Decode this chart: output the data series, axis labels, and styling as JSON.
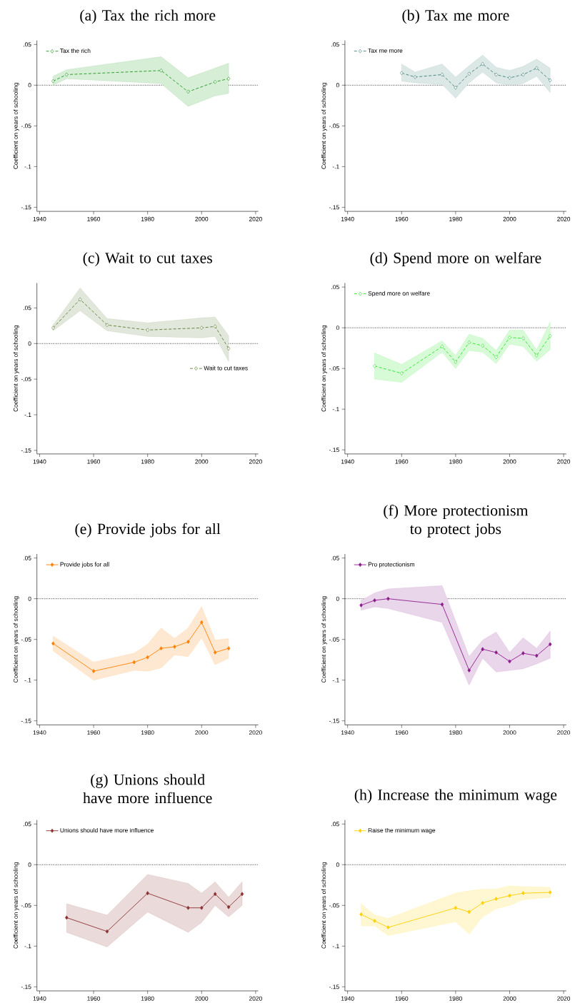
{
  "chart_data": [
    {
      "type": "line",
      "title": "(a) Tax the rich more",
      "ylabel": "Coefficient on years of schooling",
      "x": [
        1945,
        1950,
        1985,
        1995,
        2005,
        2010
      ],
      "xlim": [
        1939,
        2021
      ],
      "ylim": [
        -0.155,
        0.055
      ],
      "xticks": [
        1940,
        1960,
        1980,
        2000,
        2020
      ],
      "yticks": [
        {
          "value": -0.15,
          "label": "-.15"
        },
        {
          "value": -0.1,
          "label": "-.1"
        },
        {
          "value": -0.05,
          "label": "-.05"
        },
        {
          "value": 0,
          "label": "0"
        },
        {
          "value": 0.05,
          "label": ".05"
        }
      ],
      "marker": "diamond",
      "line_style": "dashed",
      "legend": "top left",
      "ref_lines": [
        {
          "axis": "y",
          "value": 0,
          "line_style": "dotted"
        }
      ],
      "series": [
        {
          "name": "Tax the rich",
          "color": "#1a991a",
          "values": [
            0.005,
            0.013,
            0.018,
            -0.008,
            0.004,
            0.008
          ],
          "lower": [
            0.0,
            0.008,
            0.002,
            -0.026,
            -0.013,
            -0.01
          ],
          "upper": [
            0.011,
            0.019,
            0.035,
            0.009,
            0.021,
            0.027
          ]
        }
      ]
    },
    {
      "type": "line",
      "title": "(b) Tax me more",
      "ylabel": "Coefficient on years of schooling",
      "x": [
        1960,
        1965,
        1975,
        1980,
        1985,
        1990,
        1995,
        2000,
        2005,
        2010,
        2015
      ],
      "xlim": [
        1939,
        2021
      ],
      "ylim": [
        -0.155,
        0.055
      ],
      "xticks": [
        1940,
        1960,
        1980,
        2000,
        2020
      ],
      "yticks": [
        {
          "value": -0.15,
          "label": "-.15"
        },
        {
          "value": -0.1,
          "label": "-.1"
        },
        {
          "value": -0.05,
          "label": "-.05"
        },
        {
          "value": 0,
          "label": "0"
        },
        {
          "value": 0.05,
          "label": ".05"
        }
      ],
      "marker": "diamond",
      "line_style": "dashed",
      "legend": "top left",
      "ref_lines": [
        {
          "axis": "y",
          "value": 0,
          "line_style": "dotted"
        }
      ],
      "series": [
        {
          "name": "Tax me more",
          "color": "#3d7f76",
          "values": [
            0.015,
            0.01,
            0.013,
            -0.003,
            0.014,
            0.026,
            0.013,
            0.009,
            0.013,
            0.021,
            0.006
          ],
          "lower": [
            0.005,
            0.003,
            0.001,
            -0.016,
            0.003,
            0.016,
            0.003,
            0.0,
            0.002,
            0.011,
            -0.009
          ],
          "upper": [
            0.026,
            0.016,
            0.026,
            0.01,
            0.024,
            0.037,
            0.022,
            0.018,
            0.023,
            0.032,
            0.021
          ]
        }
      ]
    },
    {
      "type": "line",
      "title": "(c) Wait to cut taxes",
      "ylabel": "Coefficient on years of schooling",
      "x": [
        1945,
        1955,
        1965,
        1980,
        2000,
        2005,
        2010
      ],
      "xlim": [
        1939,
        2021
      ],
      "ylim": [
        -0.155,
        0.085
      ],
      "xticks": [
        1940,
        1960,
        1980,
        2000,
        2020
      ],
      "yticks": [
        {
          "value": -0.15,
          "label": "-.15"
        },
        {
          "value": -0.1,
          "label": "-.1"
        },
        {
          "value": -0.05,
          "label": "-.05"
        },
        {
          "value": 0,
          "label": "0"
        },
        {
          "value": 0.05,
          "label": ".05"
        }
      ],
      "marker": "diamond",
      "line_style": "dashed",
      "legend": "right",
      "ref_lines": [
        {
          "axis": "y",
          "value": 0,
          "line_style": "dotted"
        }
      ],
      "series": [
        {
          "name": "Wait to cut taxes",
          "color": "#5a7a32",
          "values": [
            0.022,
            0.062,
            0.026,
            0.019,
            0.022,
            0.024,
            -0.007
          ],
          "lower": [
            0.018,
            0.046,
            0.018,
            0.01,
            0.008,
            0.01,
            -0.025
          ],
          "upper": [
            0.026,
            0.078,
            0.035,
            0.029,
            0.036,
            0.037,
            0.011
          ]
        }
      ]
    },
    {
      "type": "line",
      "title": "(d) Spend more on welfare",
      "ylabel": "Coefficient on years of schooling",
      "x": [
        1950,
        1960,
        1975,
        1980,
        1985,
        1990,
        1995,
        2000,
        2005,
        2010,
        2015
      ],
      "xlim": [
        1939,
        2021
      ],
      "ylim": [
        -0.155,
        0.055
      ],
      "xticks": [
        1940,
        1960,
        1980,
        2000,
        2020
      ],
      "yticks": [
        {
          "value": -0.15,
          "label": "-.15"
        },
        {
          "value": -0.1,
          "label": "-.1"
        },
        {
          "value": -0.05,
          "label": "-.05"
        },
        {
          "value": 0,
          "label": "0"
        },
        {
          "value": 0.05,
          "label": ".05"
        }
      ],
      "marker": "diamond",
      "line_style": "dashed",
      "legend": "top left",
      "ref_lines": [
        {
          "axis": "y",
          "value": 0,
          "line_style": "dotted"
        }
      ],
      "series": [
        {
          "name": "Spend more on welfare",
          "color": "#22e622",
          "values": [
            -0.047,
            -0.056,
            -0.023,
            -0.042,
            -0.018,
            -0.022,
            -0.036,
            -0.012,
            -0.013,
            -0.034,
            -0.01
          ],
          "lower": [
            -0.063,
            -0.067,
            -0.03,
            -0.05,
            -0.028,
            -0.03,
            -0.044,
            -0.02,
            -0.023,
            -0.041,
            -0.027
          ],
          "upper": [
            -0.031,
            -0.045,
            -0.016,
            -0.034,
            -0.008,
            -0.013,
            -0.028,
            -0.003,
            -0.003,
            -0.027,
            0.007
          ]
        }
      ]
    },
    {
      "type": "line",
      "title": "(e) Provide jobs for all",
      "ylabel": "Coefficient on years of schooling",
      "x": [
        1945,
        1960,
        1975,
        1980,
        1985,
        1990,
        1995,
        2000,
        2005,
        2010
      ],
      "xlim": [
        1939,
        2021
      ],
      "ylim": [
        -0.155,
        0.055
      ],
      "xticks": [
        1940,
        1960,
        1980,
        2000,
        2020
      ],
      "yticks": [
        {
          "value": -0.15,
          "label": "-.15"
        },
        {
          "value": -0.1,
          "label": "-.1"
        },
        {
          "value": -0.05,
          "label": "-.05"
        },
        {
          "value": 0,
          "label": "0"
        },
        {
          "value": 0.05,
          "label": ".05"
        }
      ],
      "marker": "diamond",
      "line_style": "solid",
      "legend": "top left",
      "ref_lines": [
        {
          "axis": "y",
          "value": 0,
          "line_style": "dotted"
        }
      ],
      "series": [
        {
          "name": "Provide jobs for all",
          "color": "#ff8000",
          "values": [
            -0.055,
            -0.089,
            -0.078,
            -0.072,
            -0.061,
            -0.059,
            -0.053,
            -0.029,
            -0.066,
            -0.061
          ],
          "lower": [
            -0.064,
            -0.1,
            -0.088,
            -0.089,
            -0.085,
            -0.069,
            -0.071,
            -0.048,
            -0.081,
            -0.073
          ],
          "upper": [
            -0.046,
            -0.078,
            -0.067,
            -0.056,
            -0.036,
            -0.049,
            -0.036,
            -0.01,
            -0.051,
            -0.049
          ]
        }
      ]
    },
    {
      "type": "line",
      "title": "(f) More protectionism to protect jobs",
      "ylabel": "Coefficient on years of schooling",
      "x": [
        1945,
        1950,
        1955,
        1975,
        1985,
        1990,
        1995,
        2000,
        2005,
        2010,
        2015
      ],
      "xlim": [
        1939,
        2021
      ],
      "ylim": [
        -0.155,
        0.055
      ],
      "xticks": [
        1940,
        1960,
        1980,
        2000,
        2020
      ],
      "yticks": [
        {
          "value": -0.15,
          "label": "-.15"
        },
        {
          "value": -0.1,
          "label": "-.1"
        },
        {
          "value": -0.05,
          "label": "-.05"
        },
        {
          "value": 0,
          "label": "0"
        },
        {
          "value": 0.05,
          "label": ".05"
        }
      ],
      "marker": "diamond",
      "line_style": "solid",
      "legend": "top left",
      "ref_lines": [
        {
          "axis": "y",
          "value": 0,
          "line_style": "dotted"
        }
      ],
      "series": [
        {
          "name": "Pro protectionism",
          "color": "#8b1a8b",
          "values": [
            -0.008,
            -0.002,
            0.0,
            -0.007,
            -0.088,
            -0.062,
            -0.066,
            -0.077,
            -0.067,
            -0.07,
            -0.056
          ],
          "lower": [
            -0.014,
            -0.01,
            -0.012,
            -0.029,
            -0.106,
            -0.073,
            -0.09,
            -0.088,
            -0.086,
            -0.08,
            -0.073
          ],
          "upper": [
            -0.002,
            0.007,
            0.012,
            0.016,
            -0.071,
            -0.051,
            -0.041,
            -0.066,
            -0.048,
            -0.061,
            -0.04
          ]
        }
      ]
    },
    {
      "type": "line",
      "title": "(g) Unions should have more influence",
      "ylabel": "Coefficient on years of schooling",
      "x": [
        1950,
        1965,
        1980,
        1995,
        2000,
        2005,
        2010,
        2015
      ],
      "xlim": [
        1939,
        2021
      ],
      "ylim": [
        -0.155,
        0.055
      ],
      "xticks": [
        1940,
        1960,
        1980,
        2000,
        2020
      ],
      "yticks": [
        {
          "value": -0.15,
          "label": "-.15"
        },
        {
          "value": -0.1,
          "label": "-.1"
        },
        {
          "value": -0.05,
          "label": "-.05"
        },
        {
          "value": 0,
          "label": "0"
        },
        {
          "value": 0.05,
          "label": ".05"
        }
      ],
      "marker": "diamond",
      "line_style": "solid",
      "legend": "top left",
      "ref_lines": [
        {
          "axis": "y",
          "value": 0,
          "line_style": "dotted"
        }
      ],
      "series": [
        {
          "name": "Unions should have more influence",
          "color": "#8b3030",
          "values": [
            -0.065,
            -0.082,
            -0.035,
            -0.053,
            -0.053,
            -0.036,
            -0.052,
            -0.036
          ],
          "lower": [
            -0.083,
            -0.101,
            -0.058,
            -0.083,
            -0.071,
            -0.05,
            -0.064,
            -0.05
          ],
          "upper": [
            -0.048,
            -0.062,
            -0.012,
            -0.023,
            -0.035,
            -0.021,
            -0.04,
            -0.021
          ]
        }
      ]
    },
    {
      "type": "line",
      "title": "(h) Increase the minimum wage",
      "ylabel": "Coefficient on years of schooling",
      "x": [
        1945,
        1950,
        1955,
        1980,
        1985,
        1990,
        1995,
        2000,
        2005,
        2015
      ],
      "xlim": [
        1939,
        2021
      ],
      "ylim": [
        -0.155,
        0.055
      ],
      "xticks": [
        1940,
        1960,
        1980,
        2000,
        2020
      ],
      "yticks": [
        {
          "value": -0.15,
          "label": "-.15"
        },
        {
          "value": -0.1,
          "label": "-.1"
        },
        {
          "value": -0.05,
          "label": "-.05"
        },
        {
          "value": 0,
          "label": "0"
        },
        {
          "value": 0.05,
          "label": ".05"
        }
      ],
      "marker": "diamond",
      "line_style": "solid",
      "legend": "top left",
      "ref_lines": [
        {
          "axis": "y",
          "value": 0,
          "line_style": "dotted"
        }
      ],
      "series": [
        {
          "name": "Raise the minimum wage",
          "color": "#ffd000",
          "values": [
            -0.061,
            -0.069,
            -0.077,
            -0.053,
            -0.058,
            -0.047,
            -0.042,
            -0.038,
            -0.035,
            -0.034
          ],
          "lower": [
            -0.075,
            -0.075,
            -0.087,
            -0.07,
            -0.085,
            -0.064,
            -0.054,
            -0.05,
            -0.043,
            -0.04
          ],
          "upper": [
            -0.048,
            -0.062,
            -0.066,
            -0.035,
            -0.032,
            -0.03,
            -0.03,
            -0.026,
            -0.027,
            -0.028
          ]
        }
      ]
    }
  ]
}
